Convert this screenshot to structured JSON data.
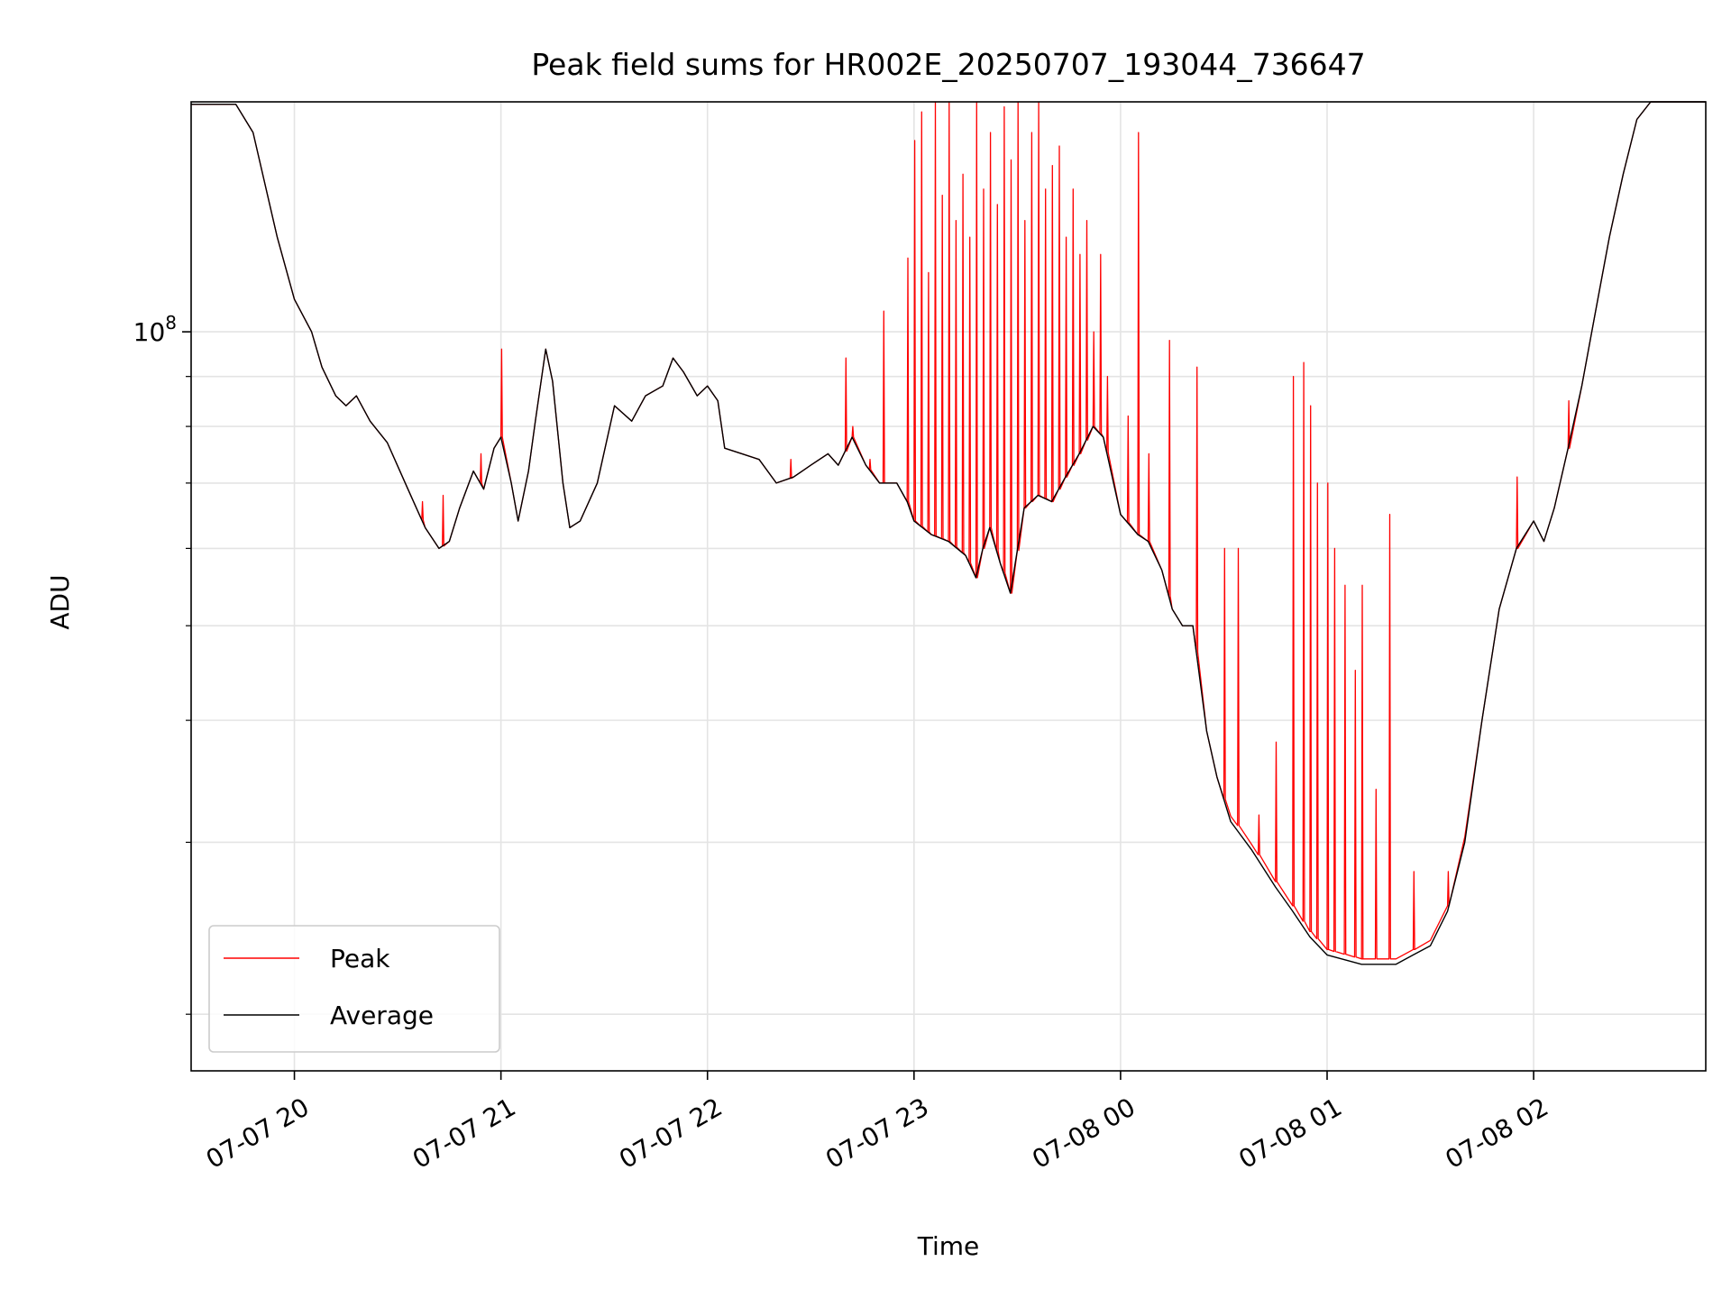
{
  "chart_data": {
    "type": "line",
    "title": "Peak field sums for HR002E_20250707_193044_736647",
    "xlabel": "Time",
    "ylabel": "ADU",
    "y_scale": "log",
    "grid": true,
    "legend_position": "lower-left",
    "x_range": [
      "2025-07-07 19:30",
      "2025-07-08 02:50"
    ],
    "ylim": [
      17500000,
      172000000
    ],
    "x_ticks": [
      {
        "time": "2025-07-07 20:00",
        "label": "07-07 20"
      },
      {
        "time": "2025-07-07 21:00",
        "label": "07-07 21"
      },
      {
        "time": "2025-07-07 22:00",
        "label": "07-07 22"
      },
      {
        "time": "2025-07-07 23:00",
        "label": "07-07 23"
      },
      {
        "time": "2025-07-08 00:00",
        "label": "07-08 00"
      },
      {
        "time": "2025-07-08 01:00",
        "label": "07-08 01"
      },
      {
        "time": "2025-07-08 02:00",
        "label": "07-08 02"
      }
    ],
    "y_major_ticks": [
      {
        "value": 100000000,
        "label_base": "10",
        "label_exp": "8"
      }
    ],
    "y_minor_ticks": [
      20000000,
      30000000,
      40000000,
      50000000,
      60000000,
      70000000,
      80000000,
      90000000,
      200000000
    ],
    "series": [
      {
        "name": "Average",
        "color": "#000000",
        "points": [
          [
            "2025-07-07 19:30",
            171000000
          ],
          [
            "2025-07-07 19:43",
            171000000
          ],
          [
            "2025-07-07 19:48",
            160000000
          ],
          [
            "2025-07-07 19:55",
            125000000
          ],
          [
            "2025-07-07 20:00",
            108000000
          ],
          [
            "2025-07-07 20:05",
            100000000
          ],
          [
            "2025-07-07 20:08",
            92000000
          ],
          [
            "2025-07-07 20:12",
            86000000
          ],
          [
            "2025-07-07 20:15",
            84000000
          ],
          [
            "2025-07-07 20:18",
            86000000
          ],
          [
            "2025-07-07 20:22",
            81000000
          ],
          [
            "2025-07-07 20:27",
            77000000
          ],
          [
            "2025-07-07 20:33",
            69000000
          ],
          [
            "2025-07-07 20:38",
            63000000
          ],
          [
            "2025-07-07 20:42",
            60000000
          ],
          [
            "2025-07-07 20:45",
            61000000
          ],
          [
            "2025-07-07 20:48",
            66000000
          ],
          [
            "2025-07-07 20:52",
            72000000
          ],
          [
            "2025-07-07 20:55",
            69000000
          ],
          [
            "2025-07-07 20:58",
            76000000
          ],
          [
            "2025-07-07 21:00",
            78000000
          ],
          [
            "2025-07-07 21:03",
            70000000
          ],
          [
            "2025-07-07 21:05",
            64000000
          ],
          [
            "2025-07-07 21:08",
            72000000
          ],
          [
            "2025-07-07 21:10",
            81000000
          ],
          [
            "2025-07-07 21:13",
            96000000
          ],
          [
            "2025-07-07 21:15",
            89000000
          ],
          [
            "2025-07-07 21:18",
            70000000
          ],
          [
            "2025-07-07 21:20",
            63000000
          ],
          [
            "2025-07-07 21:23",
            64000000
          ],
          [
            "2025-07-07 21:28",
            70000000
          ],
          [
            "2025-07-07 21:33",
            84000000
          ],
          [
            "2025-07-07 21:38",
            81000000
          ],
          [
            "2025-07-07 21:42",
            86000000
          ],
          [
            "2025-07-07 21:47",
            88000000
          ],
          [
            "2025-07-07 21:50",
            94000000
          ],
          [
            "2025-07-07 21:53",
            91000000
          ],
          [
            "2025-07-07 21:57",
            86000000
          ],
          [
            "2025-07-07 22:00",
            88000000
          ],
          [
            "2025-07-07 22:03",
            85000000
          ],
          [
            "2025-07-07 22:05",
            76000000
          ],
          [
            "2025-07-07 22:10",
            75000000
          ],
          [
            "2025-07-07 22:15",
            74000000
          ],
          [
            "2025-07-07 22:20",
            70000000
          ],
          [
            "2025-07-07 22:25",
            71000000
          ],
          [
            "2025-07-07 22:30",
            73000000
          ],
          [
            "2025-07-07 22:35",
            75000000
          ],
          [
            "2025-07-07 22:38",
            73000000
          ],
          [
            "2025-07-07 22:42",
            78000000
          ],
          [
            "2025-07-07 22:46",
            73000000
          ],
          [
            "2025-07-07 22:50",
            70000000
          ],
          [
            "2025-07-07 22:55",
            70000000
          ],
          [
            "2025-07-07 22:58",
            67000000
          ],
          [
            "2025-07-07 23:00",
            64000000
          ],
          [
            "2025-07-07 23:05",
            62000000
          ],
          [
            "2025-07-07 23:10",
            61000000
          ],
          [
            "2025-07-07 23:15",
            59000000
          ],
          [
            "2025-07-07 23:18",
            56000000
          ],
          [
            "2025-07-07 23:20",
            60000000
          ],
          [
            "2025-07-07 23:22",
            63000000
          ],
          [
            "2025-07-07 23:25",
            58000000
          ],
          [
            "2025-07-07 23:28",
            54000000
          ],
          [
            "2025-07-07 23:32",
            66000000
          ],
          [
            "2025-07-07 23:36",
            68000000
          ],
          [
            "2025-07-07 23:40",
            67000000
          ],
          [
            "2025-07-07 23:44",
            71000000
          ],
          [
            "2025-07-07 23:48",
            75000000
          ],
          [
            "2025-07-07 23:52",
            80000000
          ],
          [
            "2025-07-07 23:55",
            78000000
          ],
          [
            "2025-07-08 00:00",
            65000000
          ],
          [
            "2025-07-08 00:05",
            62000000
          ],
          [
            "2025-07-08 00:08",
            61000000
          ],
          [
            "2025-07-08 00:12",
            57000000
          ],
          [
            "2025-07-08 00:15",
            52000000
          ],
          [
            "2025-07-08 00:18",
            50000000
          ],
          [
            "2025-07-08 00:21",
            50000000
          ],
          [
            "2025-07-08 00:25",
            39000000
          ],
          [
            "2025-07-08 00:28",
            35000000
          ],
          [
            "2025-07-08 00:32",
            31500000
          ],
          [
            "2025-07-08 00:38",
            29500000
          ],
          [
            "2025-07-08 00:45",
            27000000
          ],
          [
            "2025-07-08 00:50",
            25500000
          ],
          [
            "2025-07-08 00:55",
            24000000
          ],
          [
            "2025-07-08 01:00",
            23000000
          ],
          [
            "2025-07-08 01:10",
            22500000
          ],
          [
            "2025-07-08 01:20",
            22500000
          ],
          [
            "2025-07-08 01:25",
            23000000
          ],
          [
            "2025-07-08 01:30",
            23500000
          ],
          [
            "2025-07-08 01:35",
            25500000
          ],
          [
            "2025-07-08 01:40",
            30000000
          ],
          [
            "2025-07-08 01:45",
            40000000
          ],
          [
            "2025-07-08 01:50",
            52000000
          ],
          [
            "2025-07-08 01:55",
            60000000
          ],
          [
            "2025-07-08 02:00",
            64000000
          ],
          [
            "2025-07-08 02:03",
            61000000
          ],
          [
            "2025-07-08 02:06",
            66000000
          ],
          [
            "2025-07-08 02:10",
            76000000
          ],
          [
            "2025-07-08 02:14",
            88000000
          ],
          [
            "2025-07-08 02:18",
            105000000
          ],
          [
            "2025-07-08 02:22",
            125000000
          ],
          [
            "2025-07-08 02:26",
            145000000
          ],
          [
            "2025-07-08 02:30",
            165000000
          ],
          [
            "2025-07-08 02:34",
            172000000
          ],
          [
            "2025-07-08 02:50",
            172000000
          ]
        ]
      },
      {
        "name": "Peak",
        "color": "#ff0000",
        "base": "Average",
        "spikes": [
          [
            "2025-07-07 20:37",
            67000000
          ],
          [
            "2025-07-07 20:43",
            68000000
          ],
          [
            "2025-07-07 20:54",
            75000000
          ],
          [
            "2025-07-07 21:00",
            96000000
          ],
          [
            "2025-07-07 22:24",
            74000000
          ],
          [
            "2025-07-07 22:42",
            80000000
          ],
          [
            "2025-07-07 22:40",
            94000000
          ],
          [
            "2025-07-07 22:47",
            74000000
          ],
          [
            "2025-07-07 22:54",
            70000000
          ],
          [
            "2025-07-07 22:51",
            105000000
          ],
          [
            "2025-07-07 22:58",
            119000000
          ],
          [
            "2025-07-07 23:00",
            157000000
          ],
          [
            "2025-07-07 23:02",
            168000000
          ],
          [
            "2025-07-07 23:04",
            115000000
          ],
          [
            "2025-07-07 23:06",
            172000000
          ],
          [
            "2025-07-07 23:08",
            138000000
          ],
          [
            "2025-07-07 23:10",
            172000000
          ],
          [
            "2025-07-07 23:12",
            130000000
          ],
          [
            "2025-07-07 23:14",
            145000000
          ],
          [
            "2025-07-07 23:16",
            125000000
          ],
          [
            "2025-07-07 23:18",
            172000000
          ],
          [
            "2025-07-07 23:20",
            140000000
          ],
          [
            "2025-07-07 23:22",
            160000000
          ],
          [
            "2025-07-07 23:24",
            135000000
          ],
          [
            "2025-07-07 23:26",
            170000000
          ],
          [
            "2025-07-07 23:28",
            150000000
          ],
          [
            "2025-07-07 23:30",
            172000000
          ],
          [
            "2025-07-07 23:32",
            130000000
          ],
          [
            "2025-07-07 23:34",
            160000000
          ],
          [
            "2025-07-07 23:36",
            172000000
          ],
          [
            "2025-07-07 23:38",
            140000000
          ],
          [
            "2025-07-07 23:40",
            148000000
          ],
          [
            "2025-07-07 23:42",
            155000000
          ],
          [
            "2025-07-07 23:44",
            125000000
          ],
          [
            "2025-07-07 23:46",
            140000000
          ],
          [
            "2025-07-07 23:48",
            120000000
          ],
          [
            "2025-07-07 23:50",
            130000000
          ],
          [
            "2025-07-07 23:52",
            100000000
          ],
          [
            "2025-07-07 23:54",
            120000000
          ],
          [
            "2025-07-07 23:56",
            90000000
          ],
          [
            "2025-07-08 00:02",
            82000000
          ],
          [
            "2025-07-08 00:05",
            160000000
          ],
          [
            "2025-07-08 00:08",
            75000000
          ],
          [
            "2025-07-08 00:14",
            98000000
          ],
          [
            "2025-07-08 00:22",
            92000000
          ],
          [
            "2025-07-08 00:30",
            60000000
          ],
          [
            "2025-07-08 00:34",
            60000000
          ],
          [
            "2025-07-08 00:40",
            32000000
          ],
          [
            "2025-07-08 00:45",
            38000000
          ],
          [
            "2025-07-08 00:50",
            90000000
          ],
          [
            "2025-07-08 00:53",
            93000000
          ],
          [
            "2025-07-08 00:55",
            84000000
          ],
          [
            "2025-07-08 00:57",
            70000000
          ],
          [
            "2025-07-08 01:00",
            70000000
          ],
          [
            "2025-07-08 01:02",
            60000000
          ],
          [
            "2025-07-08 01:05",
            55000000
          ],
          [
            "2025-07-08 01:08",
            45000000
          ],
          [
            "2025-07-08 01:10",
            55000000
          ],
          [
            "2025-07-08 01:14",
            34000000
          ],
          [
            "2025-07-08 01:18",
            65000000
          ],
          [
            "2025-07-08 01:25",
            28000000
          ],
          [
            "2025-07-08 01:35",
            28000000
          ],
          [
            "2025-07-08 01:55",
            71000000
          ],
          [
            "2025-07-08 02:10",
            85000000
          ]
        ]
      }
    ]
  }
}
